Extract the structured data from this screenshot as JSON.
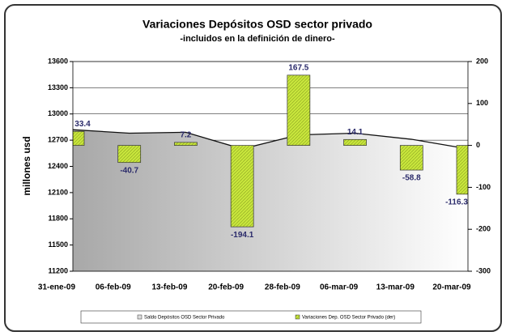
{
  "chart_data": {
    "type": "bar_area",
    "title": "Variaciones Depósitos OSD sector privado",
    "subtitle": "-incluidos en la definición de dinero-",
    "y_label": "millones usd",
    "categories": [
      "31-ene-09",
      "06-feb-09",
      "13-feb-09",
      "20-feb-09",
      "28-feb-09",
      "06-mar-09",
      "13-mar-09",
      "20-mar-09"
    ],
    "series": [
      {
        "name": "Saldo Depósitos OSD Sector Privado",
        "type": "area",
        "color": "#a0a0a0",
        "values": [
          12820,
          12780,
          12790,
          12600,
          12760,
          12780,
          12710,
          12600
        ]
      },
      {
        "name": "Variaciones Dep. OSD Sector Privado (der)",
        "type": "bar",
        "axis": "y2",
        "color": "#c8e63c",
        "values": [
          33.4,
          -40.7,
          7.2,
          -194.1,
          167.5,
          14.1,
          -58.8,
          -116.3
        ]
      }
    ],
    "ylim": [
      11200,
      13600
    ],
    "yticks": [
      11200,
      11500,
      11800,
      12100,
      12400,
      12700,
      13000,
      13300,
      13600
    ],
    "y2lim": [
      -300,
      200
    ],
    "y2ticks": [
      -300,
      -200,
      -100,
      0,
      100,
      200
    ],
    "grid": true
  }
}
